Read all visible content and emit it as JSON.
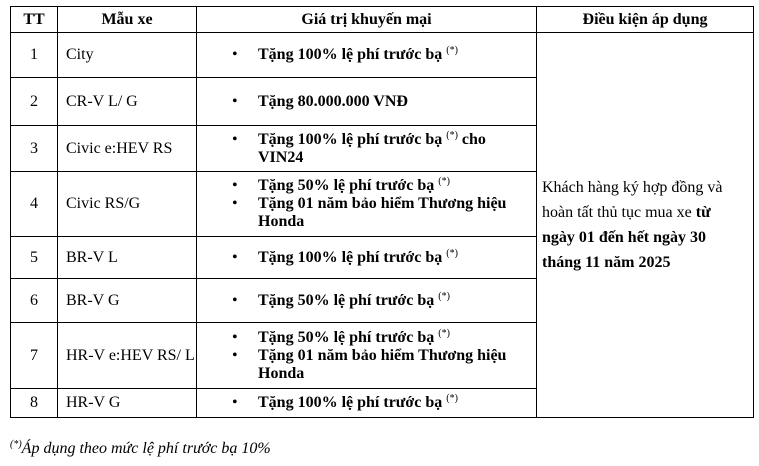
{
  "headers": [
    "TT",
    "Mẫu xe",
    "Giá trị khuyến mại",
    "Điều kiện áp dụng"
  ],
  "rows": [
    {
      "tt": "1",
      "model": "City",
      "items": [
        {
          "text": "Tặng 100% lệ phí trước bạ",
          "sup": "(*)",
          "suffix": ""
        }
      ]
    },
    {
      "tt": "2",
      "model": "CR-V L/ G",
      "items": [
        {
          "text": "Tặng 80.000.000 VNĐ",
          "sup": "",
          "suffix": ""
        }
      ]
    },
    {
      "tt": "3",
      "model": "Civic e:HEV RS",
      "items": [
        {
          "text": "Tặng 100% lệ phí trước bạ",
          "sup": "(*)",
          "suffix": " cho VIN24"
        }
      ]
    },
    {
      "tt": "4",
      "model": "Civic RS/G",
      "items": [
        {
          "text": "Tặng 50% lệ phí trước bạ",
          "sup": "(*)",
          "suffix": ""
        },
        {
          "text": "Tặng 01 năm bảo hiểm Thương hiệu Honda",
          "sup": "",
          "suffix": ""
        }
      ]
    },
    {
      "tt": "5",
      "model": "BR-V L",
      "items": [
        {
          "text": "Tặng 100% lệ phí trước bạ",
          "sup": "(*)",
          "suffix": ""
        }
      ]
    },
    {
      "tt": "6",
      "model": "BR-V G",
      "items": [
        {
          "text": "Tặng 50% lệ phí trước bạ",
          "sup": "(*)",
          "suffix": ""
        }
      ]
    },
    {
      "tt": "7",
      "model": "HR-V e:HEV RS/ L",
      "items": [
        {
          "text": "Tặng 50% lệ phí trước bạ",
          "sup": "(*)",
          "suffix": ""
        },
        {
          "text": "Tặng 01 năm bảo hiểm Thương hiệu Honda",
          "sup": "",
          "suffix": ""
        }
      ]
    },
    {
      "tt": "8",
      "model": "HR-V G",
      "items": [
        {
          "text": "Tặng 100% lệ phí trước bạ",
          "sup": "(*)",
          "suffix": ""
        }
      ]
    }
  ],
  "condition": {
    "normal": "Khách hàng ký hợp đồng và hoàn tất thủ tục mua xe ",
    "bold": "từ ngày 01 đến hết ngày 30 tháng 11 năm 2025"
  },
  "footnote": {
    "sup": "(*)",
    "text": "Áp dụng theo mức lệ phí trước bạ 10%"
  }
}
